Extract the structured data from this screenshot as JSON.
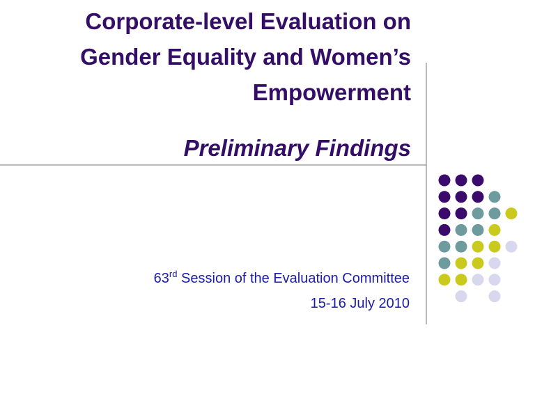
{
  "header": {
    "title_lines": [
      "Corporate-level Evaluation on",
      "Gender Equality and Women’s",
      "Empowerment"
    ],
    "subtitle": "Preliminary Findings"
  },
  "session": {
    "number": "63",
    "suffix": "rd",
    "text": " Session of the Evaluation Committee"
  },
  "date": "15-16 July 2010"
}
